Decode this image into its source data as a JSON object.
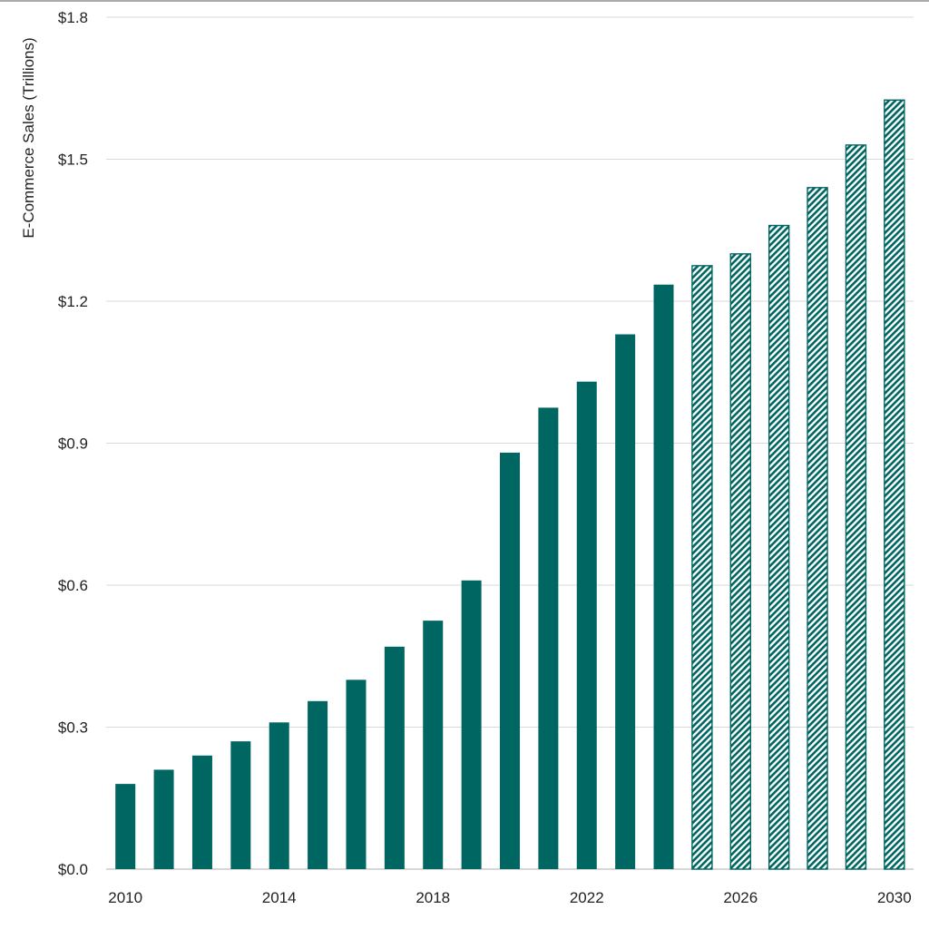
{
  "chart_data": {
    "type": "bar",
    "title": "",
    "xlabel": "",
    "ylabel": "E-Commerce Sales (Trillions)",
    "ylim": [
      0,
      1.8
    ],
    "y_ticks": [
      0,
      0.3,
      0.6,
      0.9,
      1.2,
      1.5,
      1.8
    ],
    "y_tick_labels": [
      "$0.0",
      "$0.3",
      "$0.6",
      "$0.9",
      "$1.2",
      "$1.5",
      "$1.8"
    ],
    "x_tick_labels": [
      "2010",
      "2014",
      "2018",
      "2022",
      "2026",
      "2030"
    ],
    "grid": true,
    "legend": "none",
    "color": "#006661",
    "categories": [
      "2010",
      "2011",
      "2012",
      "2013",
      "2014",
      "2015",
      "2016",
      "2017",
      "2018",
      "2019",
      "2020",
      "2021",
      "2022",
      "2023",
      "2024",
      "2025",
      "2026",
      "2027",
      "2028",
      "2029",
      "2030"
    ],
    "values": [
      0.18,
      0.21,
      0.24,
      0.27,
      0.31,
      0.355,
      0.4,
      0.47,
      0.525,
      0.61,
      0.88,
      0.975,
      1.03,
      1.13,
      1.235,
      1.275,
      1.3,
      1.36,
      1.44,
      1.53,
      1.625
    ],
    "style": [
      "solid",
      "solid",
      "solid",
      "solid",
      "solid",
      "solid",
      "solid",
      "solid",
      "solid",
      "solid",
      "solid",
      "solid",
      "solid",
      "solid",
      "solid",
      "hatched",
      "hatched",
      "hatched",
      "hatched",
      "hatched",
      "hatched"
    ]
  }
}
